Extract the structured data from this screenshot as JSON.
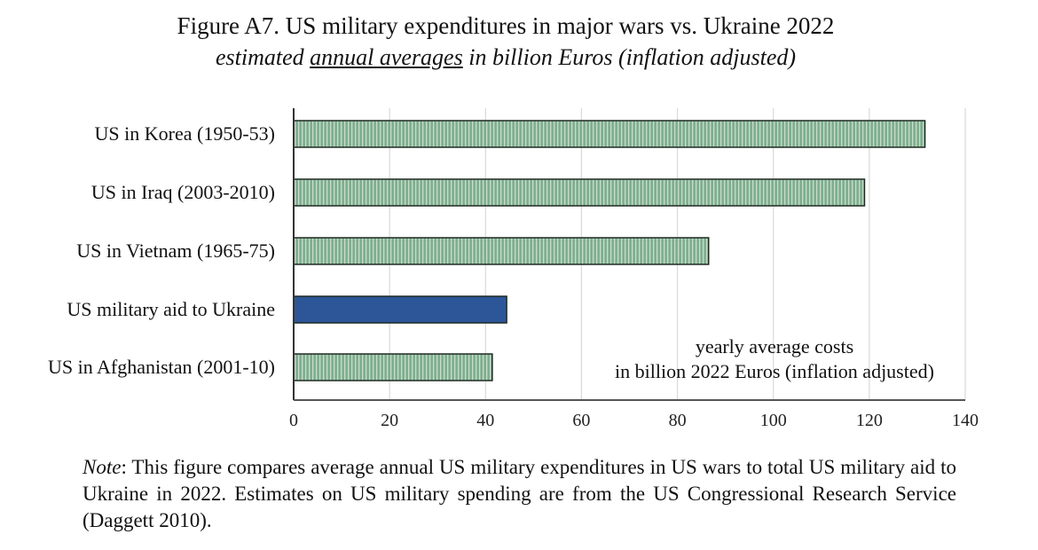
{
  "chart_data": {
    "type": "bar",
    "orientation": "horizontal",
    "title": "Figure A7. US military expenditures in major wars vs. Ukraine 2022",
    "subtitle": {
      "prefix": "estimated ",
      "underlined": "annual averages",
      "suffix": " in billion Euros (inflation adjusted)"
    },
    "categories": [
      "US in Korea (1950-53)",
      "US in Iraq (2003-2010)",
      "US in Vietnam (1965-75)",
      "US military aid to Ukraine",
      "US in Afghanistan (2001-10)"
    ],
    "values": [
      131.6,
      119.0,
      86.5,
      44.4,
      41.4
    ],
    "highlight": [
      false,
      false,
      false,
      true,
      false
    ],
    "xlim": [
      0,
      140
    ],
    "xticks": [
      0,
      20,
      40,
      60,
      80,
      100,
      120,
      140
    ],
    "grid": true,
    "xlabel": "",
    "ylabel": "",
    "annotation": [
      "yearly average costs",
      "in billion 2022 Euros (inflation adjusted)"
    ],
    "colors": {
      "default_bar": "#7fae8e",
      "highlight_bar": "#2d5699",
      "bar_edge": "#1e2a22",
      "grid": "#d9d9d9"
    }
  },
  "note": {
    "label": "Note",
    "text": ": This figure compares average annual US military expenditures in US wars to total US military aid to Ukraine in 2022. Estimates on US military spending are from the US Congressional Research Service (Daggett 2010)."
  }
}
